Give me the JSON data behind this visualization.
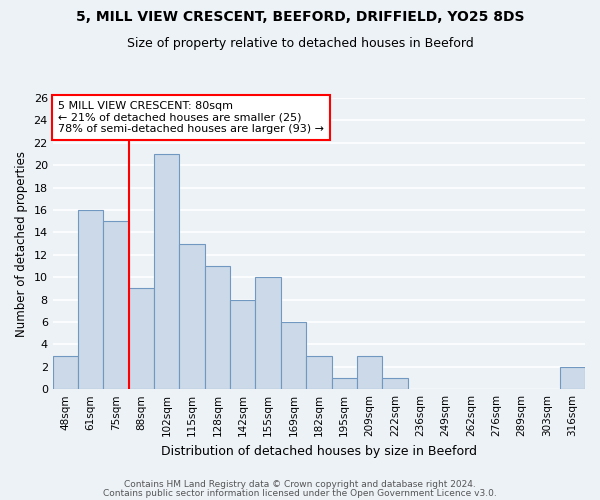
{
  "title": "5, MILL VIEW CRESCENT, BEEFORD, DRIFFIELD, YO25 8DS",
  "subtitle": "Size of property relative to detached houses in Beeford",
  "xlabel": "Distribution of detached houses by size in Beeford",
  "ylabel": "Number of detached properties",
  "bin_labels": [
    "48sqm",
    "61sqm",
    "75sqm",
    "88sqm",
    "102sqm",
    "115sqm",
    "128sqm",
    "142sqm",
    "155sqm",
    "169sqm",
    "182sqm",
    "195sqm",
    "209sqm",
    "222sqm",
    "236sqm",
    "249sqm",
    "262sqm",
    "276sqm",
    "289sqm",
    "303sqm",
    "316sqm"
  ],
  "bar_heights": [
    3,
    16,
    15,
    9,
    21,
    13,
    11,
    8,
    10,
    6,
    3,
    1,
    3,
    1,
    0,
    0,
    0,
    0,
    0,
    0,
    2
  ],
  "bar_color": "#ccd9e8",
  "bar_edge_color": "#7098c0",
  "vline_x": 2.5,
  "vline_color": "red",
  "annotation_title": "5 MILL VIEW CRESCENT: 80sqm",
  "annotation_line1": "← 21% of detached houses are smaller (25)",
  "annotation_line2": "78% of semi-detached houses are larger (93) →",
  "annotation_box_color": "white",
  "annotation_box_edge": "red",
  "ylim": [
    0,
    26
  ],
  "yticks": [
    0,
    2,
    4,
    6,
    8,
    10,
    12,
    14,
    16,
    18,
    20,
    22,
    24,
    26
  ],
  "footer1": "Contains HM Land Registry data © Crown copyright and database right 2024.",
  "footer2": "Contains public sector information licensed under the Open Government Licence v3.0.",
  "background_color": "#edf2f7"
}
